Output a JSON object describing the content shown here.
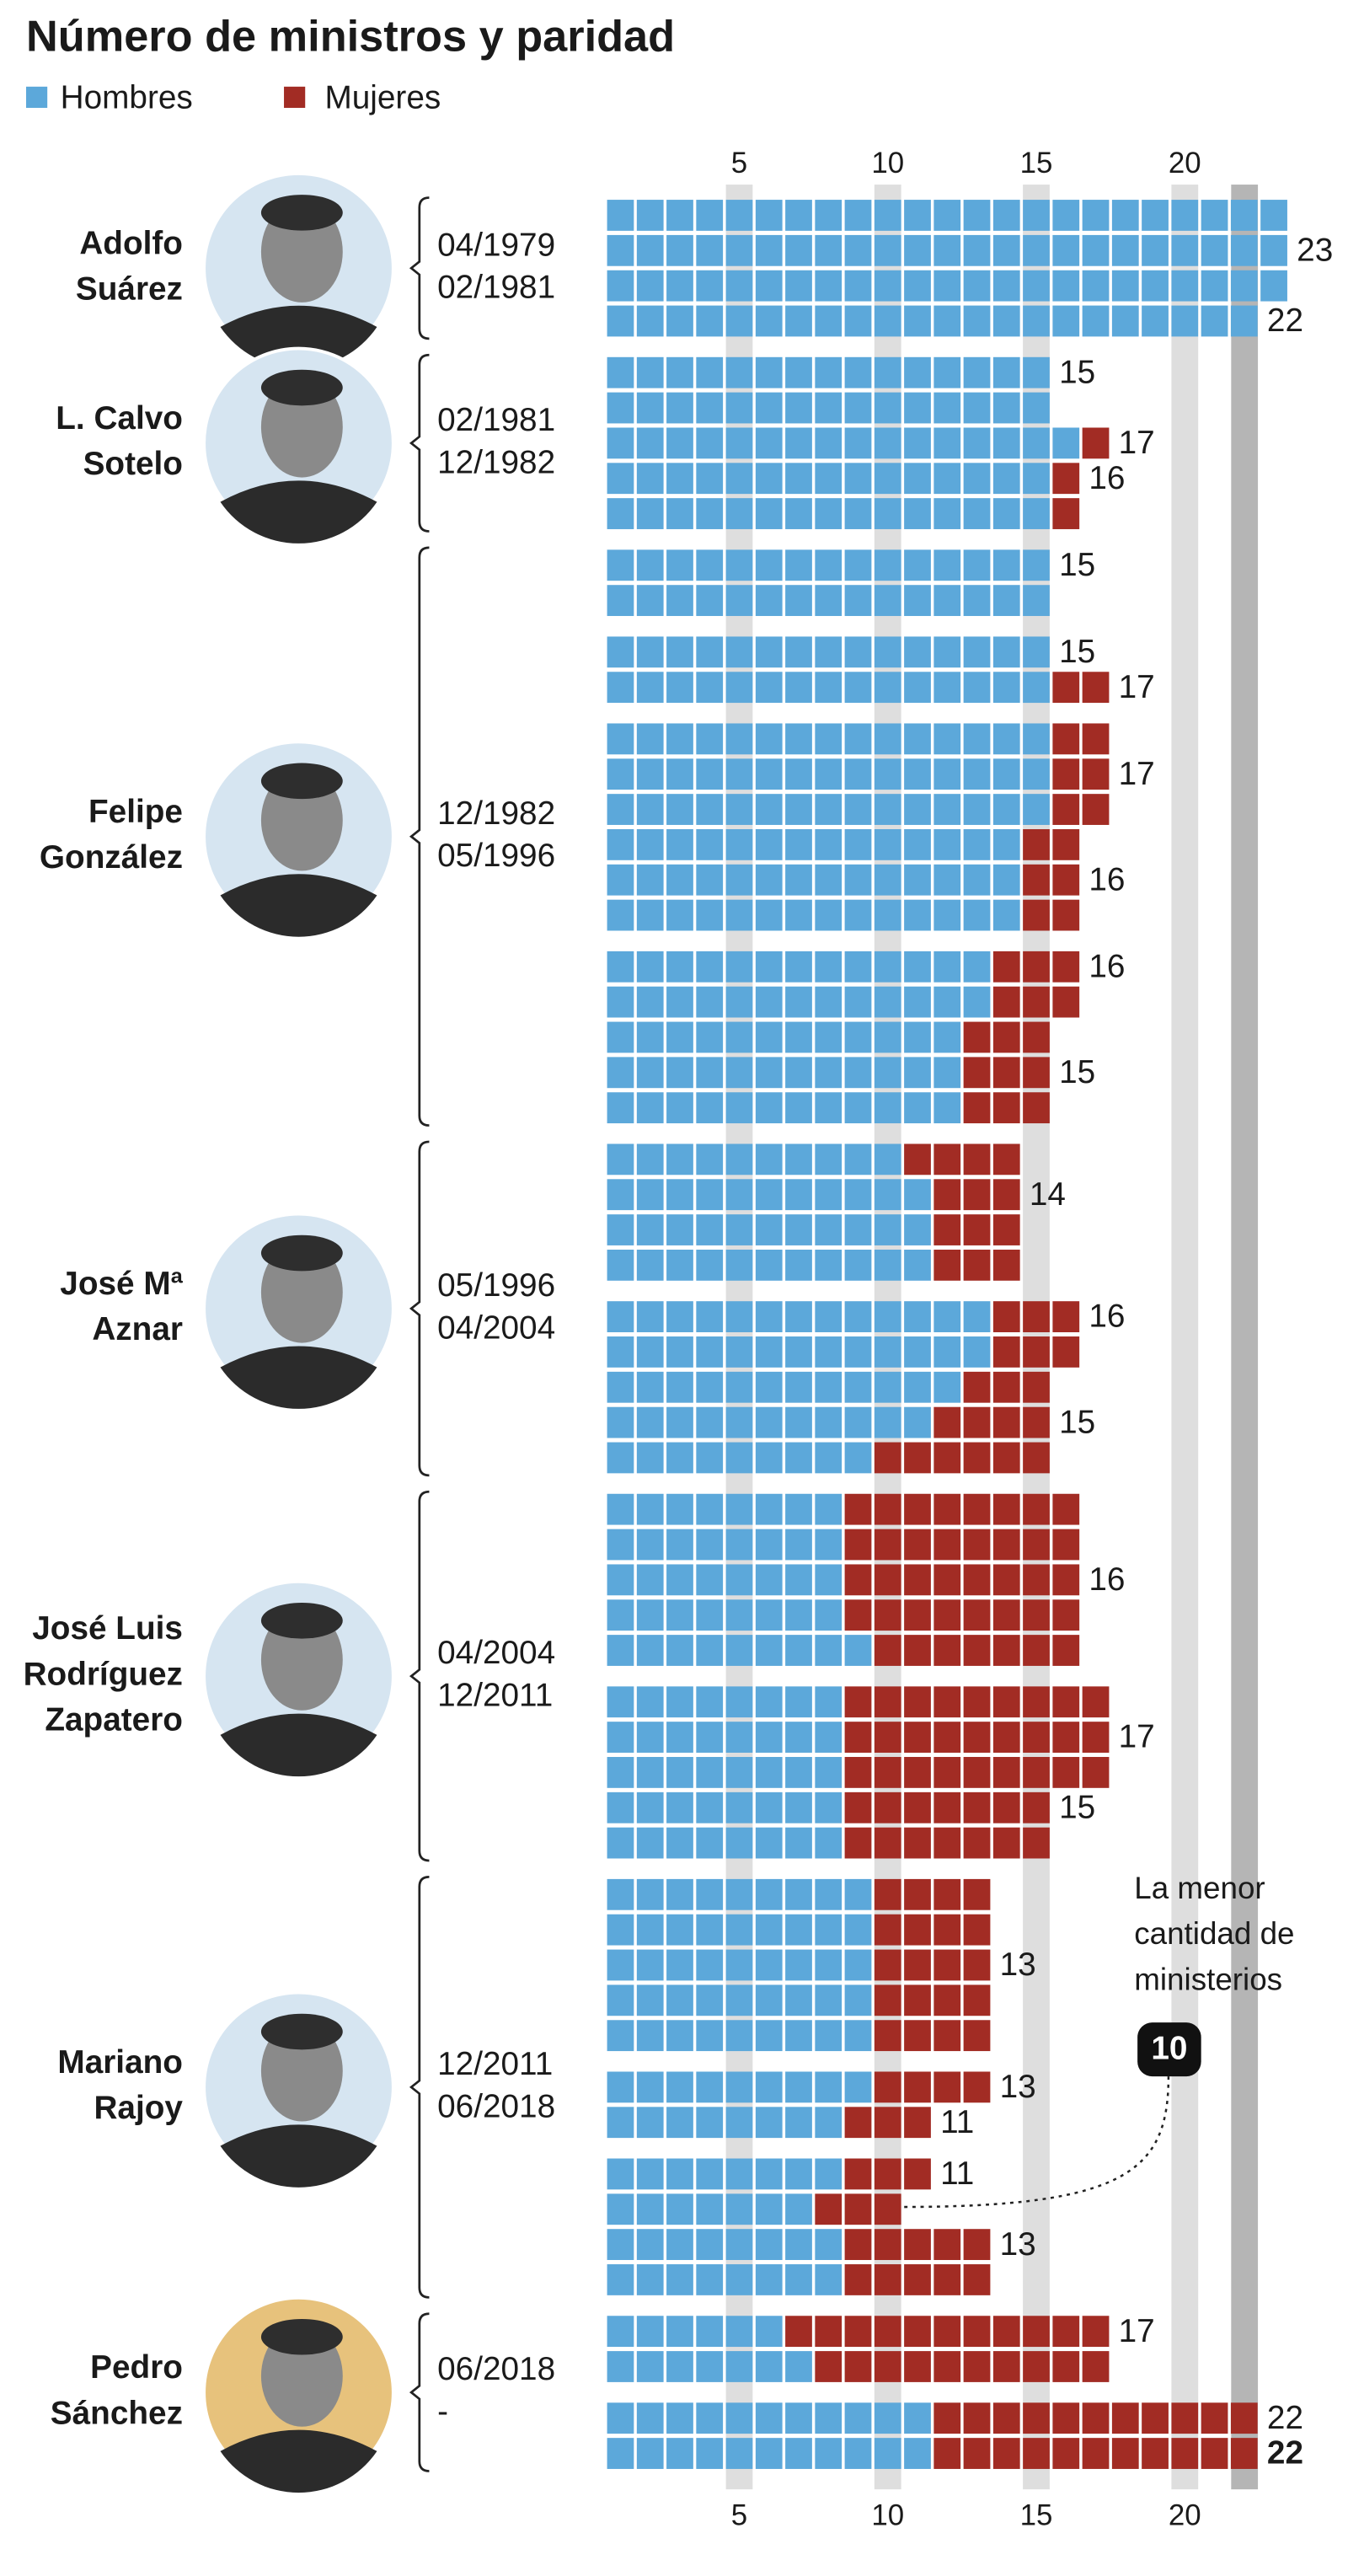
{
  "chart_data": {
    "type": "waffle",
    "title": "Número de ministros y paridad",
    "series": [
      {
        "name": "Hombres",
        "color": "#5ca8da"
      },
      {
        "name": "Mujeres",
        "color": "#a22c24"
      }
    ],
    "xticks": [
      5,
      10,
      15,
      20
    ],
    "presidents": [
      {
        "name": [
          "Adolfo",
          "Suárez"
        ],
        "dates": [
          "04/1979",
          "02/1981"
        ],
        "blocks": [
          [
            {
              "men": 23,
              "women": 0
            },
            {
              "men": 23,
              "women": 0,
              "total": 23
            },
            {
              "men": 23,
              "women": 0
            },
            {
              "men": 22,
              "women": 0,
              "total": 22
            }
          ]
        ]
      },
      {
        "name": [
          "L. Calvo",
          "Sotelo"
        ],
        "dates": [
          "02/1981",
          "12/1982"
        ],
        "blocks": [
          [
            {
              "men": 15,
              "women": 0,
              "total": 15
            },
            {
              "men": 15,
              "women": 0
            },
            {
              "men": 16,
              "women": 1,
              "total": 17
            },
            {
              "men": 15,
              "women": 1,
              "total": 16
            },
            {
              "men": 15,
              "women": 1
            }
          ]
        ]
      },
      {
        "name": [
          "Felipe",
          "González"
        ],
        "dates": [
          "12/1982",
          "05/1996"
        ],
        "blocks": [
          [
            {
              "men": 15,
              "women": 0,
              "total": 15
            },
            {
              "men": 15,
              "women": 0
            }
          ],
          [
            {
              "men": 15,
              "women": 0,
              "total": 15
            },
            {
              "men": 15,
              "women": 2,
              "total": 17
            }
          ],
          [
            {
              "men": 15,
              "women": 2
            },
            {
              "men": 15,
              "women": 2,
              "total": 17
            },
            {
              "men": 15,
              "women": 2
            },
            {
              "men": 14,
              "women": 2
            },
            {
              "men": 14,
              "women": 2,
              "total": 16
            },
            {
              "men": 14,
              "women": 2
            }
          ],
          [
            {
              "men": 13,
              "women": 3,
              "total": 16
            },
            {
              "men": 13,
              "women": 3
            },
            {
              "men": 12,
              "women": 3
            },
            {
              "men": 12,
              "women": 3,
              "total": 15
            },
            {
              "men": 12,
              "women": 3
            }
          ]
        ]
      },
      {
        "name": [
          "José Mª",
          "Aznar"
        ],
        "dates": [
          "05/1996",
          "04/2004"
        ],
        "blocks": [
          [
            {
              "men": 10,
              "women": 4
            },
            {
              "men": 11,
              "women": 3,
              "total": 14
            },
            {
              "men": 11,
              "women": 3
            },
            {
              "men": 11,
              "women": 3
            }
          ],
          [
            {
              "men": 13,
              "women": 3,
              "total": 16
            },
            {
              "men": 13,
              "women": 3
            },
            {
              "men": 12,
              "women": 3
            },
            {
              "men": 11,
              "women": 4,
              "total": 15
            },
            {
              "men": 9,
              "women": 6
            }
          ]
        ]
      },
      {
        "name": [
          "José Luis",
          "Rodríguez",
          "Zapatero"
        ],
        "dates": [
          "04/2004",
          "12/2011"
        ],
        "blocks": [
          [
            {
              "men": 8,
              "women": 8
            },
            {
              "men": 8,
              "women": 8
            },
            {
              "men": 8,
              "women": 8,
              "total": 16
            },
            {
              "men": 8,
              "women": 8
            },
            {
              "men": 9,
              "women": 7
            }
          ],
          [
            {
              "men": 8,
              "women": 9
            },
            {
              "men": 8,
              "women": 9,
              "total": 17
            },
            {
              "men": 8,
              "women": 9
            },
            {
              "men": 8,
              "women": 7,
              "total": 15
            },
            {
              "men": 8,
              "women": 7
            }
          ]
        ]
      },
      {
        "name": [
          "Mariano",
          "Rajoy"
        ],
        "dates": [
          "12/2011",
          "06/2018"
        ],
        "blocks": [
          [
            {
              "men": 9,
              "women": 4
            },
            {
              "men": 9,
              "women": 4
            },
            {
              "men": 9,
              "women": 4,
              "total": 13
            },
            {
              "men": 9,
              "women": 4
            },
            {
              "men": 9,
              "women": 4
            }
          ],
          [
            {
              "men": 9,
              "women": 4,
              "total": 13
            },
            {
              "men": 8,
              "women": 3,
              "total": 11
            }
          ],
          [
            {
              "men": 8,
              "women": 3,
              "total": 11
            },
            {
              "men": 7,
              "women": 3
            },
            {
              "men": 8,
              "women": 5,
              "total": 13
            },
            {
              "men": 8,
              "women": 5
            }
          ]
        ]
      },
      {
        "name": [
          "Pedro",
          "Sánchez"
        ],
        "dates": [
          "06/2018",
          "-"
        ],
        "blocks": [
          [
            {
              "men": 6,
              "women": 11,
              "total": 17
            },
            {
              "men": 7,
              "women": 10
            }
          ],
          [
            {
              "men": 11,
              "women": 11,
              "total": 22
            },
            {
              "men": 11,
              "women": 11,
              "total": 22,
              "emphasis": true
            }
          ]
        ]
      }
    ],
    "annotation": {
      "text": [
        "La menor",
        "cantidad de",
        "ministerios"
      ],
      "value": 10
    }
  }
}
